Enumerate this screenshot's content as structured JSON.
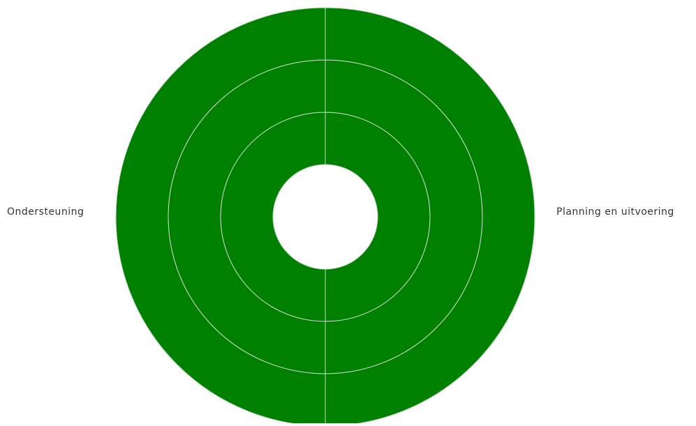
{
  "colors": {
    "fill": "#008000",
    "stroke": "#c8dcc8",
    "background": "#ffffff"
  },
  "chart_data": {
    "type": "pie",
    "chart_variant": "sunburst",
    "categories": [
      "Planning en uitvoering",
      "Ondersteuning"
    ],
    "levels": 3,
    "series": [
      {
        "values": [
          1,
          1
        ]
      },
      {
        "values": [
          1,
          1
        ]
      },
      {
        "values": [
          1,
          1
        ]
      }
    ],
    "legend": "none"
  }
}
